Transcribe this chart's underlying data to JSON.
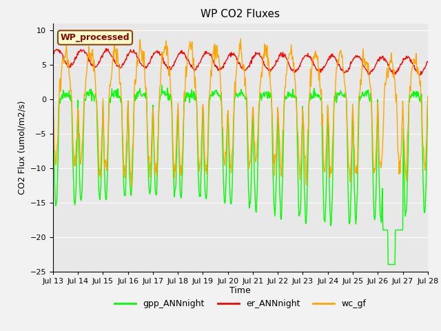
{
  "title": "WP CO2 Fluxes",
  "xlabel": "Time",
  "ylabel_display": "CO2 Flux (umol/m2/s)",
  "ylim": [
    -25,
    11
  ],
  "yticks": [
    -25,
    -20,
    -15,
    -10,
    -5,
    0,
    5,
    10
  ],
  "x_tick_days": [
    13,
    14,
    15,
    16,
    17,
    18,
    19,
    20,
    21,
    22,
    23,
    24,
    25,
    26,
    27,
    28
  ],
  "n_points_per_day": 48,
  "total_days": 15,
  "series": {
    "gpp_ANNnight": {
      "color": "#00FF00",
      "linewidth": 1.0,
      "label": "gpp_ANNnight"
    },
    "er_ANNnight": {
      "color": "#FF0000",
      "linewidth": 1.0,
      "label": "er_ANNnight"
    },
    "wc_gf": {
      "color": "#FFA500",
      "linewidth": 1.0,
      "label": "wc_gf"
    }
  },
  "annotation_text": "WP_processed",
  "annotation_color": "#8B0000",
  "annotation_bg": "#FFFFCC",
  "annotation_border": "#8B4513",
  "bg_color": "#E8E8E8",
  "grid_color": "#FFFFFF",
  "fig_bg": "#F2F2F2",
  "title_fontsize": 11,
  "axis_fontsize": 9,
  "tick_fontsize": 8
}
